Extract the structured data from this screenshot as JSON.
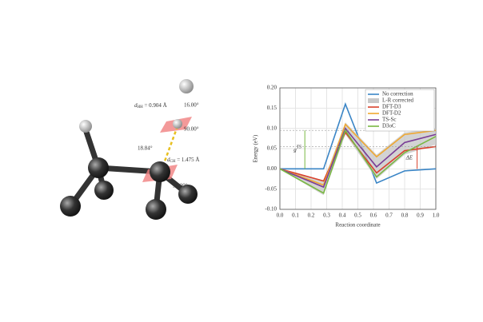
{
  "chart_data": {
    "type": "line",
    "xlabel": "Reaction coordinate",
    "ylabel": "Energy (eV)",
    "x": [
      0,
      0.28,
      0.42,
      0.62,
      0.8,
      1.0
    ],
    "series": [
      {
        "name": "No correction",
        "color": "#3a85c6",
        "values": [
          0,
          0,
          0.16,
          -0.035,
          -0.005,
          0.0
        ]
      },
      {
        "name": "L-R corrected",
        "color": "#c8c8c8",
        "values": [
          0,
          -0.03,
          0.115,
          0.035,
          0.09,
          0.1
        ],
        "lower": [
          0,
          -0.065,
          0.085,
          -0.025,
          0.035,
          0.06
        ]
      },
      {
        "name": "DFT-D3",
        "color": "#d9412b",
        "values": [
          0,
          -0.03,
          0.09,
          -0.01,
          0.045,
          0.055
        ]
      },
      {
        "name": "DFT-D2",
        "color": "#f0a830",
        "values": [
          0,
          -0.04,
          0.11,
          0.03,
          0.085,
          0.095
        ]
      },
      {
        "name": "TS-Sc",
        "color": "#7a3d96",
        "values": [
          0,
          -0.045,
          0.1,
          0.005,
          0.065,
          0.085
        ]
      },
      {
        "name": "D3oC",
        "color": "#79b843",
        "values": [
          0,
          -0.06,
          0.095,
          -0.02,
          0.04,
          0.08
        ]
      }
    ],
    "xlim": [
      0,
      1.0
    ],
    "xticks": [
      {
        "value": 0,
        "label": "0.0"
      },
      0.1,
      0.2,
      0.3,
      0.4,
      0.5,
      0.6,
      0.7,
      0.8,
      0.9,
      {
        "value": 1,
        "label": "1.0"
      }
    ],
    "ylim": [
      -0.1,
      0.2
    ],
    "yticks": [
      {
        "value": -0.1,
        "label": "-0.10"
      },
      -0.05,
      {
        "value": 0,
        "label": "0.00"
      },
      0.05,
      {
        "value": 0.1,
        "label": "0.10"
      },
      0.15,
      {
        "value": 0.2,
        "label": "0.20"
      }
    ],
    "grid": true,
    "legend": "upper right",
    "annotations": [
      {
        "text": "g",
        "sup": "TS",
        "color": "#79b843",
        "x": 0.16,
        "y": [
          0,
          0.095
        ]
      },
      {
        "text": "ΔE",
        "color": "#d9412b",
        "x": 0.88,
        "y": [
          0,
          0.055
        ]
      }
    ]
  },
  "diagram": {
    "labels": [
      {
        "var": "d",
        "sub": "HH",
        "rest": " = 0.904 Å",
        "color": "#c9961a"
      },
      {
        "text": "16.00°"
      },
      {
        "text": "90.00°"
      },
      {
        "text": "18.84°"
      },
      {
        "var": "d",
        "sub": "CH",
        "rest": " = 1.475 Å",
        "color": "#c9961a"
      },
      {
        "text": "90.00°"
      }
    ]
  }
}
